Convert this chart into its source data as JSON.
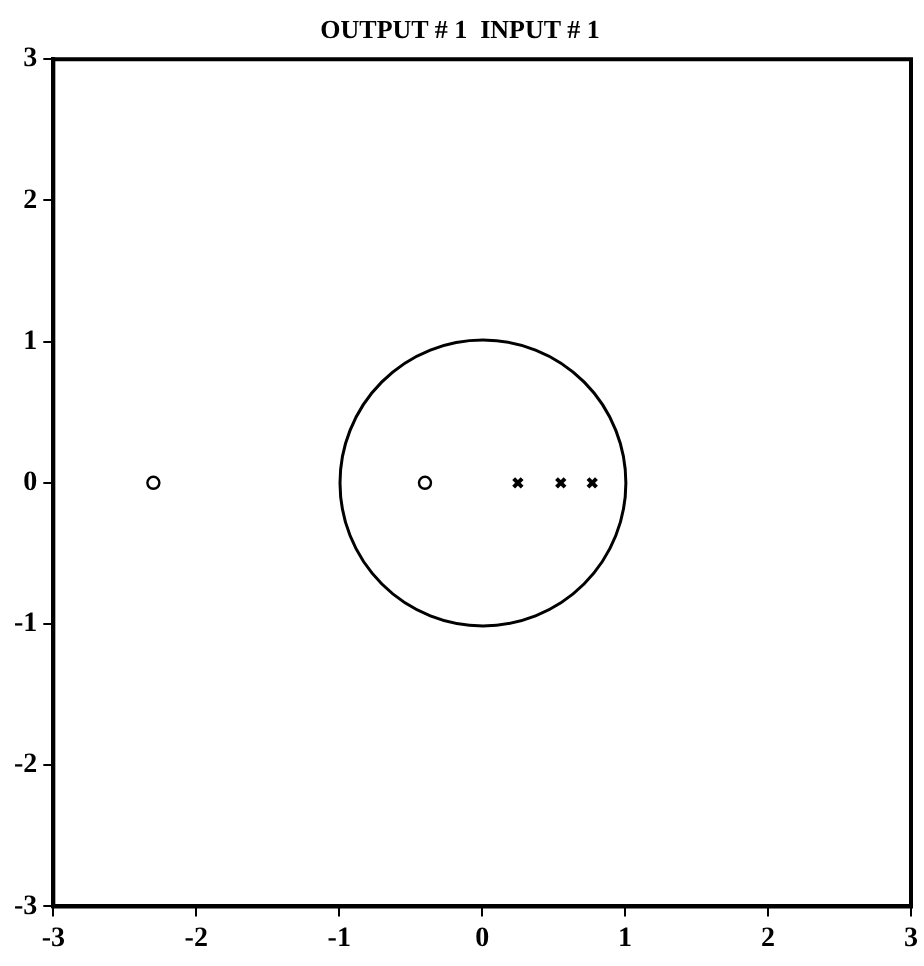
{
  "chart_data": {
    "type": "scatter",
    "title": "OUTPUT # 1  INPUT # 1",
    "xlim": [
      -3,
      3
    ],
    "ylim": [
      -3,
      3
    ],
    "xticks": [
      -3,
      -2,
      -1,
      0,
      1,
      2,
      3
    ],
    "yticks": [
      -3,
      -2,
      -1,
      0,
      1,
      2,
      3
    ],
    "grid": false,
    "legend": false,
    "series": [
      {
        "type": "scatter",
        "marker": "circle",
        "color": "#000000",
        "x": [
          -2.3,
          -0.4
        ],
        "values": [
          0,
          0
        ]
      },
      {
        "type": "scatter",
        "marker": "cross",
        "color": "#000000",
        "x": [
          0.25,
          0.55,
          0.77
        ],
        "values": [
          0,
          0,
          0
        ]
      }
    ]
  }
}
